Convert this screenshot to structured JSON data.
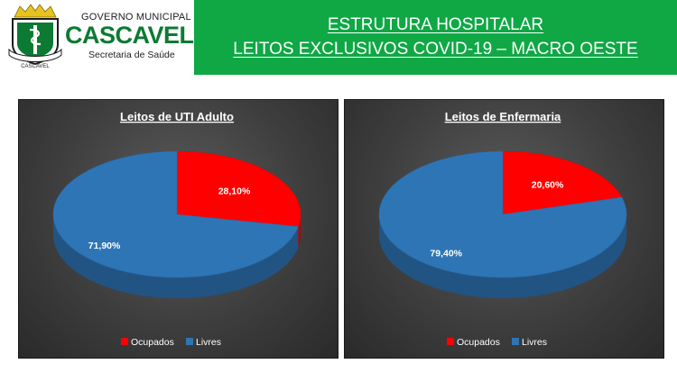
{
  "header": {
    "org_line1": "GOVERNO MUNICIPAL",
    "org_name": "CASCAVEL",
    "org_dept": "Secretaria de Saúde",
    "crest_caption": "CASCAVEL",
    "title_line1": "ESTRUTURA HOSPITALAR",
    "title_line2": "LEITOS EXCLUSIVOS COVID-19 – MACRO OESTE",
    "bg_color": "#0fa845"
  },
  "chart_data": [
    {
      "type": "pie",
      "title": "Leitos de UTI Adulto",
      "categories": [
        "Ocupados",
        "Livres"
      ],
      "values": [
        28.1,
        71.9
      ],
      "labels": [
        "28,10%",
        "71,90%"
      ],
      "colors": [
        "#ff0000",
        "#2e75b6"
      ],
      "legend": "bottom"
    },
    {
      "type": "pie",
      "title": "Leitos de Enfermaria",
      "categories": [
        "Ocupados",
        "Livres"
      ],
      "values": [
        20.6,
        79.4
      ],
      "labels": [
        "20,60%",
        "79,40%"
      ],
      "colors": [
        "#ff0000",
        "#2e75b6"
      ],
      "legend": "bottom"
    }
  ]
}
